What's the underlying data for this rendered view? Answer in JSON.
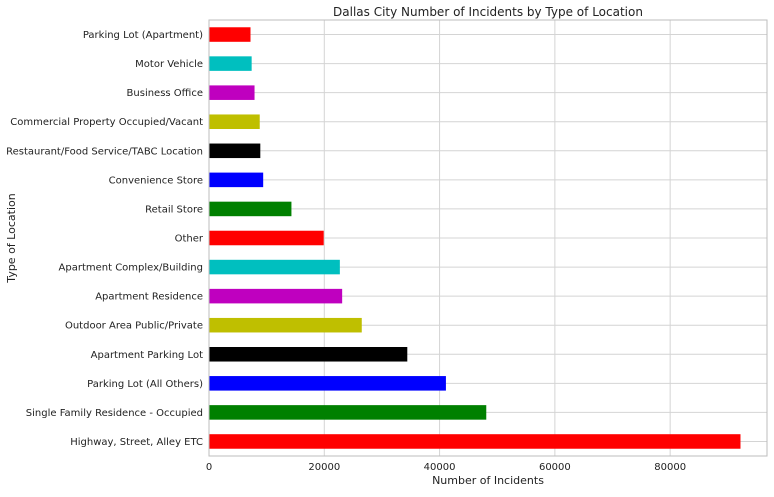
{
  "chart_data": {
    "type": "bar",
    "orientation": "horizontal",
    "title": "Dallas City Number of Incidents by Type of Location",
    "xlabel": "Number of Incidents",
    "ylabel": "Type of Location",
    "xlim": [
      0,
      96800
    ],
    "xticks": [
      0,
      20000,
      40000,
      60000,
      80000
    ],
    "xtick_labels": [
      "0",
      "20000",
      "40000",
      "60000",
      "80000"
    ],
    "grid": true,
    "categories": [
      "Highway, Street, Alley ETC",
      "Single Family Residence - Occupied",
      "Parking Lot (All Others)",
      "Apartment Parking Lot",
      "Outdoor Area Public/Private",
      "Apartment Residence",
      "Apartment Complex/Building",
      "Other",
      "Retail Store",
      "Convenience Store",
      "Restaurant/Food Service/TABC Location",
      "Commercial Property Occupied/Vacant",
      "Business Office",
      "Motor Vehicle",
      "Parking Lot (Apartment)"
    ],
    "values": [
      92200,
      48100,
      41100,
      34400,
      26500,
      23100,
      22700,
      19900,
      14300,
      9400,
      8900,
      8800,
      7900,
      7400,
      7200
    ],
    "bar_colors": [
      "#ff0000",
      "#008000",
      "#0000ff",
      "#000000",
      "#bfbf00",
      "#bf00bf",
      "#00bfbf"
    ]
  }
}
